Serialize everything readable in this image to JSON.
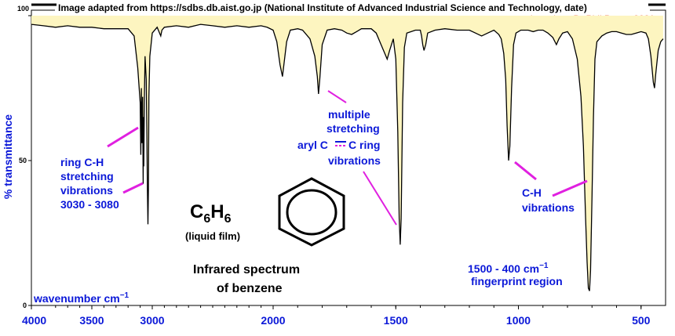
{
  "chart_data": {
    "type": "line",
    "title": "Infrared spectrum of benzene",
    "xlabel": "wavenumber cm−1",
    "ylabel": "% transmittance",
    "xlim": [
      4000,
      400
    ],
    "ylim": [
      0,
      100
    ],
    "x_ticks": [
      "4000",
      "3500",
      "3000",
      "2000",
      "1500",
      "1000",
      "500"
    ],
    "x_tick_values": [
      4000,
      3500,
      3000,
      2000,
      1500,
      1000,
      500
    ],
    "y_ticks": [
      "0",
      "50",
      "100"
    ],
    "y_tick_values": [
      0,
      50,
      100
    ],
    "fill_color": "#fdf5c0",
    "line_color": "#000000",
    "series": [
      {
        "values": [
          [
            4000,
            97
          ],
          [
            3900,
            96.5
          ],
          [
            3800,
            96
          ],
          [
            3700,
            96.5
          ],
          [
            3600,
            96
          ],
          [
            3500,
            96
          ],
          [
            3400,
            95.5
          ],
          [
            3300,
            95.5
          ],
          [
            3200,
            95.5
          ],
          [
            3150,
            93
          ],
          [
            3120,
            82
          ],
          [
            3100,
            70
          ],
          [
            3095,
            52
          ],
          [
            3090,
            75
          ],
          [
            3085,
            56
          ],
          [
            3080,
            72
          ],
          [
            3075,
            42
          ],
          [
            3072,
            65
          ],
          [
            3070,
            48
          ],
          [
            3065,
            72
          ],
          [
            3060,
            86
          ],
          [
            3050,
            78
          ],
          [
            3045,
            60
          ],
          [
            3040,
            40
          ],
          [
            3036,
            28
          ],
          [
            3032,
            40
          ],
          [
            3028,
            72
          ],
          [
            3020,
            86
          ],
          [
            3000,
            94
          ],
          [
            2960,
            96
          ],
          [
            2930,
            93
          ],
          [
            2920,
            95
          ],
          [
            2900,
            96
          ],
          [
            2800,
            96.5
          ],
          [
            2700,
            96
          ],
          [
            2600,
            97
          ],
          [
            2500,
            96.5
          ],
          [
            2400,
            96
          ],
          [
            2300,
            96.5
          ],
          [
            2200,
            96
          ],
          [
            2100,
            96.5
          ],
          [
            2050,
            96
          ],
          [
            2000,
            95
          ],
          [
            1985,
            91
          ],
          [
            1972,
            83
          ],
          [
            1962,
            79
          ],
          [
            1955,
            84
          ],
          [
            1945,
            91
          ],
          [
            1930,
            95
          ],
          [
            1900,
            95.5
          ],
          [
            1880,
            95
          ],
          [
            1850,
            92
          ],
          [
            1830,
            86
          ],
          [
            1820,
            79
          ],
          [
            1815,
            73
          ],
          [
            1810,
            78
          ],
          [
            1800,
            90
          ],
          [
            1780,
            95
          ],
          [
            1750,
            95.5
          ],
          [
            1720,
            95
          ],
          [
            1700,
            94
          ],
          [
            1680,
            93.5
          ],
          [
            1660,
            94.5
          ],
          [
            1640,
            95.5
          ],
          [
            1600,
            95.5
          ],
          [
            1580,
            94
          ],
          [
            1560,
            90
          ],
          [
            1545,
            87
          ],
          [
            1535,
            85
          ],
          [
            1525,
            88
          ],
          [
            1510,
            92
          ],
          [
            1500,
            85
          ],
          [
            1492,
            60
          ],
          [
            1486,
            30
          ],
          [
            1482,
            21
          ],
          [
            1478,
            30
          ],
          [
            1472,
            70
          ],
          [
            1465,
            89
          ],
          [
            1455,
            94
          ],
          [
            1420,
            95
          ],
          [
            1400,
            95
          ],
          [
            1395,
            93
          ],
          [
            1390,
            90
          ],
          [
            1385,
            88
          ],
          [
            1378,
            90
          ],
          [
            1370,
            94
          ],
          [
            1340,
            95
          ],
          [
            1300,
            95.5
          ],
          [
            1250,
            95
          ],
          [
            1200,
            95
          ],
          [
            1175,
            94
          ],
          [
            1150,
            93
          ],
          [
            1125,
            94
          ],
          [
            1100,
            95
          ],
          [
            1080,
            93.5
          ],
          [
            1070,
            92
          ],
          [
            1060,
            87
          ],
          [
            1052,
            78
          ],
          [
            1046,
            62
          ],
          [
            1040,
            50
          ],
          [
            1035,
            55
          ],
          [
            1028,
            75
          ],
          [
            1020,
            90
          ],
          [
            1010,
            94
          ],
          [
            990,
            95
          ],
          [
            960,
            95
          ],
          [
            940,
            94.5
          ],
          [
            920,
            95
          ],
          [
            900,
            95
          ],
          [
            880,
            94
          ],
          [
            860,
            92.5
          ],
          [
            845,
            90
          ],
          [
            835,
            92
          ],
          [
            820,
            94
          ],
          [
            800,
            94.5
          ],
          [
            780,
            92
          ],
          [
            760,
            85
          ],
          [
            745,
            72
          ],
          [
            735,
            55
          ],
          [
            726,
            30
          ],
          [
            720,
            15
          ],
          [
            715,
            6
          ],
          [
            710,
            5
          ],
          [
            706,
            12
          ],
          [
            700,
            38
          ],
          [
            694,
            65
          ],
          [
            688,
            85
          ],
          [
            680,
            91
          ],
          [
            660,
            93
          ],
          [
            640,
            94
          ],
          [
            620,
            94.5
          ],
          [
            600,
            94.5
          ],
          [
            580,
            94
          ],
          [
            560,
            93.5
          ],
          [
            540,
            93.5
          ],
          [
            520,
            94
          ],
          [
            500,
            94.5
          ],
          [
            480,
            94
          ],
          [
            470,
            92
          ],
          [
            460,
            86
          ],
          [
            450,
            77
          ],
          [
            445,
            75
          ],
          [
            440,
            80
          ],
          [
            430,
            88
          ],
          [
            420,
            91
          ],
          [
            410,
            92
          ]
        ]
      }
    ]
  },
  "page": {
    "credit": "Image adapted from https://sdbs.db.aist.go.jp (National Institute of Advanced Industrial Science and Technology, date)",
    "credit_sub": "spectra adaptations Dr Phil Brown 2021",
    "x_axis_label": "wavenumber  cm",
    "x_axis_sup": "−1",
    "y_axis_label": "% transmittance",
    "y_top_tick": "100",
    "formula_c": "C",
    "formula_c_sub": "6",
    "formula_h": "H",
    "formula_h_sub": "6",
    "formula_phase": "(liquid film)",
    "title_line1": "Infrared spectrum",
    "title_line2": "of benzene"
  },
  "annotations": {
    "ring_ch": [
      "ring C-H",
      "stretching",
      "vibrations",
      "3030 - 3080"
    ],
    "multiple": [
      "multiple",
      "stretching"
    ],
    "aryl_prefix": "aryl  C",
    "aryl_mid": "C ring",
    "aryl_vib": "vibrations",
    "ch_vib": [
      "C-H",
      "vibrations"
    ],
    "fingerprint_range": "1500 - 400  cm",
    "fingerprint_sup": "−1",
    "fingerprint_label": "fingerprint region"
  },
  "colors": {
    "annotation_text": "#0b18d8",
    "pointer": "#e020e0",
    "credit_sub": "#f08060",
    "axis": "#000000"
  }
}
